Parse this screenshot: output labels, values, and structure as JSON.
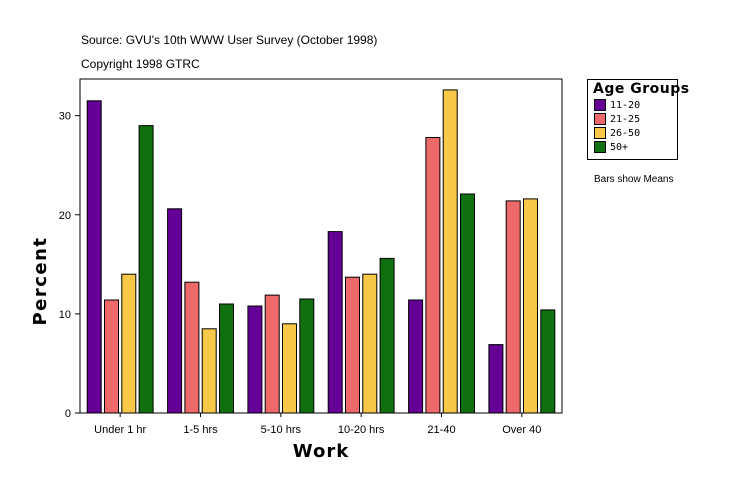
{
  "source": "Source: GVU's 10th WWW User Survey (October 1998)",
  "copyright": "Copyright 1998 GTRC",
  "note": "Bars show Means",
  "legend": {
    "title": "Age Groups",
    "items": [
      {
        "label": "11-20",
        "color": "#640096"
      },
      {
        "label": "21-25",
        "color": "#ee6a6a"
      },
      {
        "label": "26-50",
        "color": "#f8c848"
      },
      {
        "label": "50+",
        "color": "#107010"
      }
    ]
  },
  "chart_data": {
    "type": "bar",
    "title": "",
    "xlabel": "Work",
    "ylabel": "Percent",
    "ylim": [
      0,
      33.7
    ],
    "yticks": [
      0,
      10,
      20,
      30
    ],
    "categories": [
      "Under 1 hr",
      "1-5 hrs",
      "5-10 hrs",
      "10-20 hrs",
      "21-40",
      "Over 40"
    ],
    "series": [
      {
        "name": "11-20",
        "color": "#640096",
        "values": [
          31.5,
          20.6,
          10.8,
          18.3,
          11.4,
          6.9
        ]
      },
      {
        "name": "21-25",
        "color": "#ee6a6a",
        "values": [
          11.4,
          13.2,
          11.9,
          13.7,
          27.8,
          21.4
        ]
      },
      {
        "name": "26-50",
        "color": "#f8c848",
        "values": [
          14.0,
          8.5,
          9.0,
          14.0,
          32.6,
          21.6
        ]
      },
      {
        "name": "50+",
        "color": "#107010",
        "values": [
          29.0,
          11.0,
          11.5,
          15.6,
          22.1,
          10.4
        ]
      }
    ],
    "grid": false
  }
}
